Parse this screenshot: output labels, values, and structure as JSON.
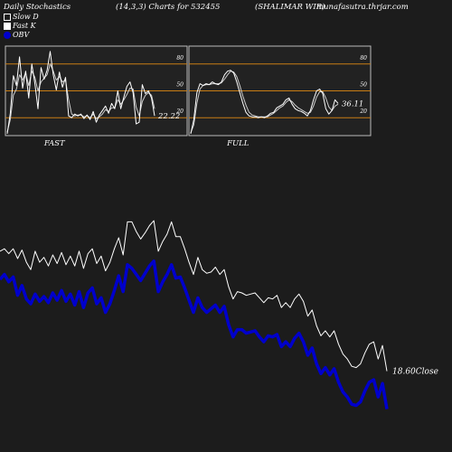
{
  "header": {
    "title_left": "Daily Stochastics",
    "title_mid": "(14,3,3) Charts for 532455",
    "title_symbol": "(SHALIMAR WIR)",
    "site": "munafasutra.thrjar.com"
  },
  "legend": {
    "items": [
      {
        "label": "Slow  D",
        "swatch": "dark"
      },
      {
        "label": "Fast K",
        "swatch": "light"
      },
      {
        "label": "OBV",
        "swatch": "blue"
      }
    ]
  },
  "colors": {
    "background": "#1c1c1c",
    "grid": "#c87d14",
    "line": "#ffffff",
    "obv": "#0000cc"
  },
  "chart_data": [
    {
      "type": "line",
      "title": "FAST",
      "yticks": [
        "80",
        "50",
        "20"
      ],
      "levels": [
        80,
        50,
        20
      ],
      "ylim": [
        0,
        100
      ],
      "last_label": "22.22",
      "series": [
        {
          "name": "Fast K",
          "values": [
            2,
            25,
            67,
            56,
            88,
            53,
            72,
            42,
            80,
            58,
            30,
            76,
            63,
            73,
            94,
            68,
            51,
            71,
            54,
            65,
            22,
            20,
            24,
            22,
            24,
            19,
            23,
            18,
            27,
            15,
            23,
            28,
            33,
            25,
            36,
            30,
            50,
            30,
            43,
            55,
            60,
            48,
            13,
            15,
            57,
            47,
            50,
            42,
            22
          ]
        },
        {
          "name": "Slow D",
          "values": [
            4,
            18,
            45,
            52,
            68,
            62,
            70,
            56,
            72,
            65,
            50,
            60,
            64,
            68,
            80,
            72,
            62,
            66,
            60,
            62,
            40,
            24,
            22,
            23,
            23,
            21,
            22,
            20,
            24,
            19,
            21,
            24,
            29,
            27,
            31,
            31,
            40,
            35,
            40,
            46,
            53,
            52,
            32,
            22,
            38,
            45,
            48,
            45,
            30
          ]
        }
      ]
    },
    {
      "type": "line",
      "title": "FULL",
      "yticks": [
        "80",
        "50",
        "20"
      ],
      "levels": [
        80,
        50,
        20
      ],
      "ylim": [
        0,
        100
      ],
      "last_label": "36.11",
      "series": [
        {
          "name": "Full K",
          "values": [
            2,
            18,
            48,
            58,
            56,
            58,
            57,
            60,
            58,
            57,
            60,
            68,
            72,
            73,
            70,
            60,
            48,
            36,
            26,
            22,
            21,
            21,
            20,
            21,
            20,
            22,
            25,
            26,
            31,
            33,
            35,
            40,
            42,
            35,
            30,
            28,
            27,
            25,
            22,
            28,
            40,
            50,
            52,
            47,
            30,
            24,
            28,
            40,
            36
          ]
        },
        {
          "name": "Full D",
          "values": [
            3,
            12,
            36,
            52,
            56,
            57,
            57,
            58,
            58,
            58,
            59,
            63,
            68,
            72,
            71,
            66,
            56,
            44,
            34,
            26,
            23,
            22,
            21,
            21,
            21,
            21,
            23,
            25,
            28,
            31,
            33,
            37,
            40,
            38,
            34,
            31,
            29,
            27,
            25,
            26,
            33,
            43,
            49,
            49,
            42,
            32,
            28,
            33,
            35
          ]
        }
      ]
    },
    {
      "type": "line",
      "title": "",
      "last_label": "18.60",
      "last_label_suffix": "Close",
      "series": [
        {
          "name": "Close",
          "values": [
            28.4,
            28.6,
            28.2,
            28.6,
            27.8,
            28.5,
            27.5,
            26.9,
            28.4,
            27.5,
            27.9,
            27.2,
            28.1,
            27.4,
            28.3,
            27.3,
            28.0,
            27.2,
            28.4,
            27.0,
            28.2,
            28.6,
            27.4,
            28.0,
            26.8,
            27.5,
            28.6,
            29.5,
            28.1,
            30.8,
            30.8,
            30.0,
            29.4,
            29.9,
            30.5,
            30.9,
            28.4,
            29.2,
            29.8,
            30.8,
            29.6,
            29.6,
            28.6,
            27.5,
            26.5,
            27.9,
            26.9,
            26.6,
            26.7,
            27.1,
            26.5,
            26.9,
            25.5,
            24.5,
            25.1,
            25.0,
            24.8,
            24.9,
            25.0,
            24.6,
            24.2,
            24.6,
            24.5,
            24.8,
            23.8,
            24.2,
            23.8,
            24.5,
            24.9,
            24.3,
            23.1,
            23.6,
            22.3,
            21.5,
            21.9,
            21.4,
            21.9,
            20.8,
            20.0,
            19.6,
            19.0,
            18.9,
            19.2,
            20.1,
            20.8,
            21.0,
            19.6,
            20.7,
            18.6
          ]
        },
        {
          "name": "OBV",
          "values": [
            26.1,
            26.5,
            25.9,
            26.3,
            24.8,
            25.6,
            24.5,
            24.1,
            24.9,
            24.3,
            24.7,
            24.2,
            25.0,
            24.4,
            25.2,
            24.3,
            24.9,
            24.0,
            25.1,
            23.8,
            25.0,
            25.4,
            24.1,
            24.6,
            23.4,
            24.1,
            25.2,
            26.4,
            25.1,
            27.3,
            27.0,
            26.5,
            26.0,
            26.6,
            27.2,
            27.6,
            25.1,
            25.9,
            26.5,
            27.3,
            26.2,
            26.3,
            25.4,
            24.4,
            23.4,
            24.6,
            23.8,
            23.4,
            23.7,
            24.0,
            23.4,
            23.9,
            22.4,
            21.4,
            22.0,
            22.0,
            21.7,
            21.8,
            21.9,
            21.4,
            21.0,
            21.5,
            21.4,
            21.6,
            20.6,
            21.0,
            20.6,
            21.3,
            21.7,
            21.0,
            19.9,
            20.5,
            19.2,
            18.4,
            18.9,
            18.3,
            18.8,
            17.7,
            16.9,
            16.5,
            15.9,
            15.8,
            16.1,
            17.0,
            17.7,
            17.9,
            16.5,
            17.6,
            15.5
          ]
        }
      ]
    }
  ]
}
